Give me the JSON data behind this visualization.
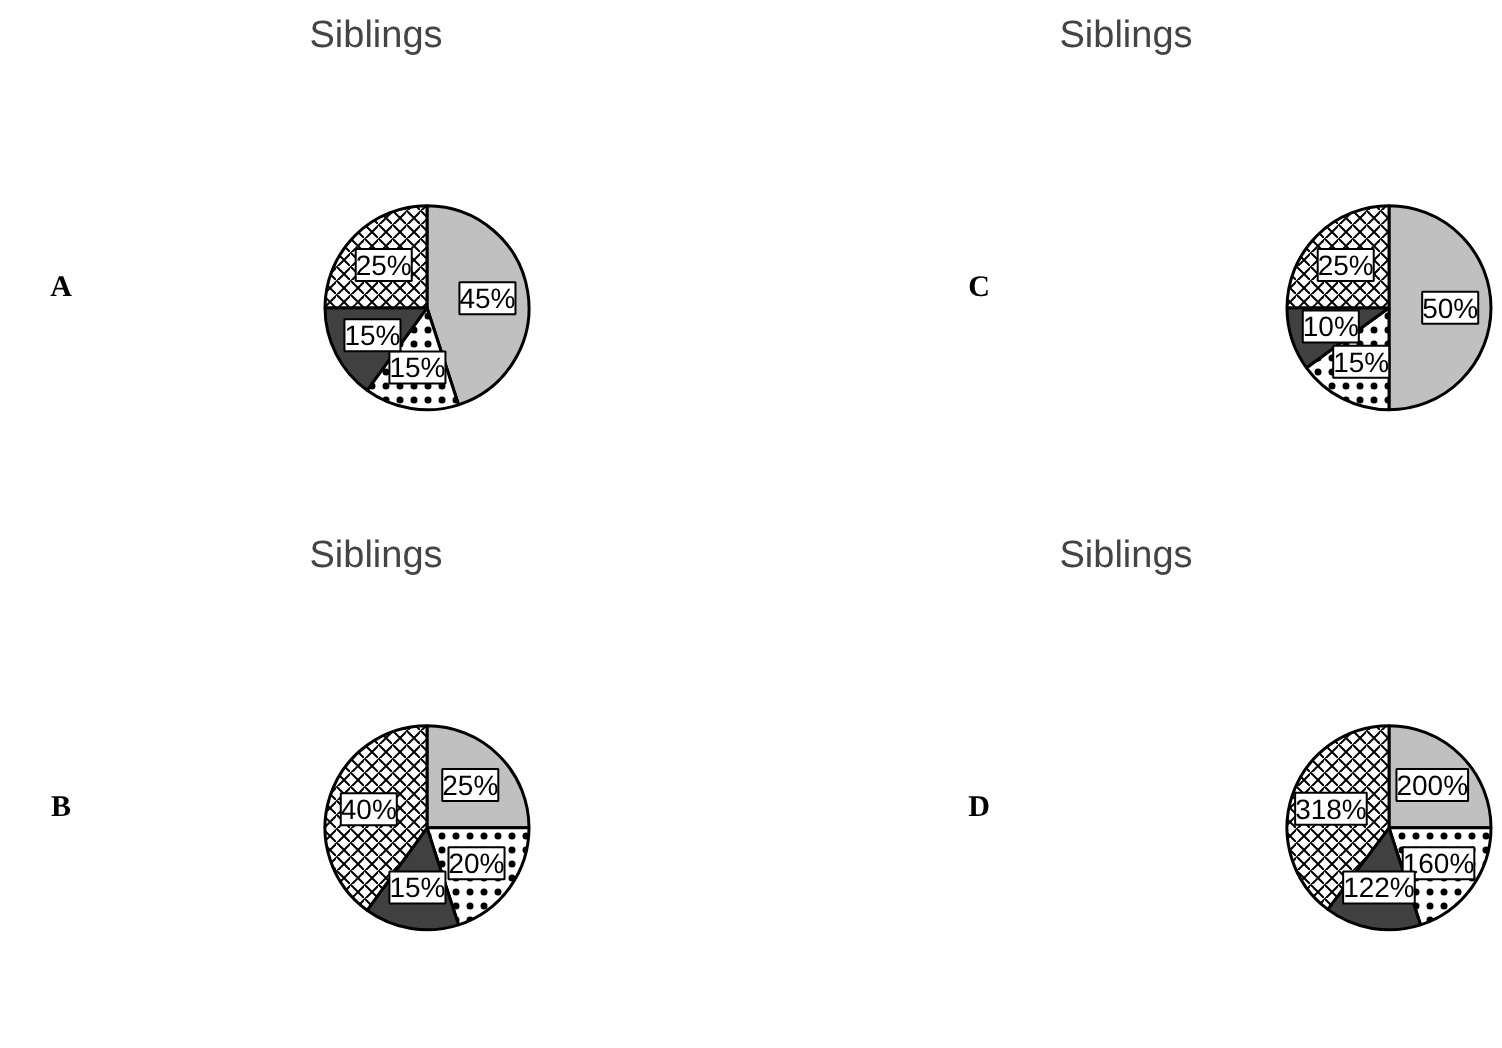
{
  "chart_data": [
    {
      "type": "pie",
      "title": "Siblings",
      "annotations": [
        "A"
      ],
      "categories": [
        null,
        null,
        null,
        null
      ],
      "values": [
        45,
        15,
        15,
        25
      ],
      "colors": [
        "#c0c0c0",
        "#ffffff",
        "#404040",
        "#ffffff"
      ],
      "value_labels": [
        "45%",
        "15%",
        "15%",
        "25%"
      ]
    },
    {
      "type": "pie",
      "title": "Siblings",
      "annotations": [
        "C"
      ],
      "categories": [
        null,
        null,
        null,
        null
      ],
      "values": [
        50,
        15,
        10,
        25
      ],
      "colors": [
        "#c0c0c0",
        "#ffffff",
        "#404040",
        "#ffffff"
      ],
      "value_labels": [
        "50%",
        "15%",
        "10%",
        "25%"
      ]
    },
    {
      "type": "pie",
      "title": "Siblings",
      "annotations": [
        "B"
      ],
      "categories": [
        null,
        null,
        null,
        null
      ],
      "values": [
        25,
        20,
        15,
        40
      ],
      "colors": [
        "#c0c0c0",
        "#ffffff",
        "#404040",
        "#ffffff"
      ],
      "value_labels": [
        "25%",
        "20%",
        "15%",
        "40%"
      ]
    },
    {
      "type": "pie",
      "title": "Siblings",
      "annotations": [
        "D"
      ],
      "categories": [
        null,
        null,
        null,
        null
      ],
      "values": [
        200,
        160,
        122,
        318
      ],
      "colors": [
        "#c0c0c0",
        "#ffffff",
        "#404040",
        "#ffffff"
      ],
      "value_labels": [
        "200%",
        "160%",
        "122%",
        "318%"
      ]
    }
  ]
}
